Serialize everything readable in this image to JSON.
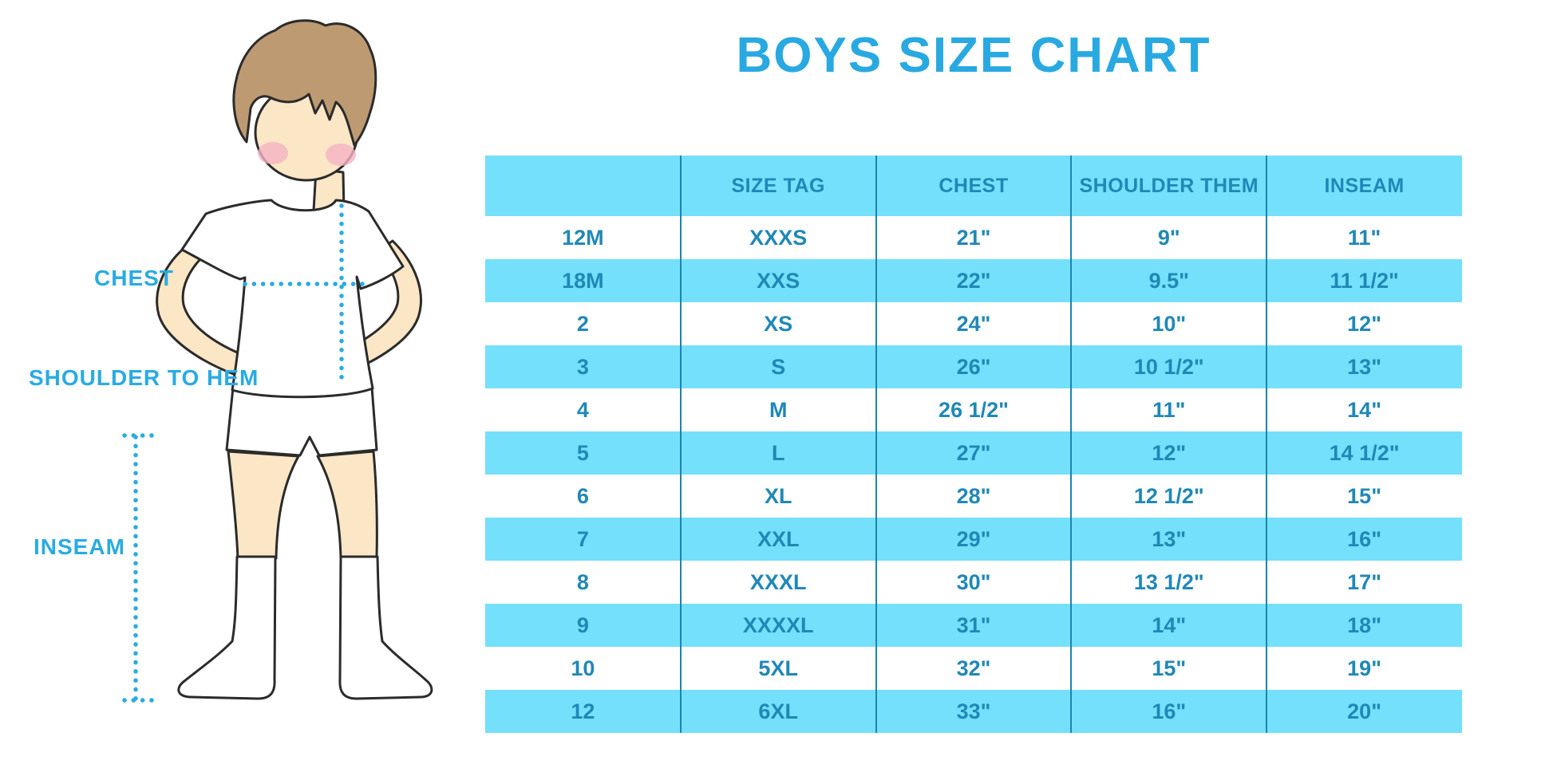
{
  "title": "BOYS SIZE CHART",
  "figure": {
    "labels": {
      "chest": "CHEST",
      "shoulder_to_hem": "SHOULDER TO HEM",
      "inseam": "INSEAM"
    }
  },
  "chart_data": {
    "type": "table",
    "title": "BOYS SIZE CHART",
    "columns": [
      "",
      "SIZE TAG",
      "CHEST",
      "SHOULDER THEM",
      "INSEAM"
    ],
    "rows": [
      [
        "12M",
        "XXXS",
        "21\"",
        "9\"",
        "11\""
      ],
      [
        "18M",
        "XXS",
        "22\"",
        "9.5\"",
        "11 1/2\""
      ],
      [
        "2",
        "XS",
        "24\"",
        "10\"",
        "12\""
      ],
      [
        "3",
        "S",
        "26\"",
        "10 1/2\"",
        "13\""
      ],
      [
        "4",
        "M",
        "26 1/2\"",
        "11\"",
        "14\""
      ],
      [
        "5",
        "L",
        "27\"",
        "12\"",
        "14 1/2\""
      ],
      [
        "6",
        "XL",
        "28\"",
        "12 1/2\"",
        "15\""
      ],
      [
        "7",
        "XXL",
        "29\"",
        "13\"",
        "16\""
      ],
      [
        "8",
        "XXXL",
        "30\"",
        "13 1/2\"",
        "17\""
      ],
      [
        "9",
        "XXXXL",
        "31\"",
        "14\"",
        "18\""
      ],
      [
        "10",
        "5XL",
        "32\"",
        "15\"",
        "19\""
      ],
      [
        "12",
        "6XL",
        "33\"",
        "16\"",
        "20\""
      ]
    ],
    "layout": {
      "header_fill": "#74E0FB",
      "alternating_rows": true,
      "first_data_row": "white"
    }
  },
  "colors": {
    "accent_blue": "#29ABE2",
    "title_blue": "#29A9E1",
    "table_fill": "#74E0FB",
    "table_text": "#1F88B7",
    "column_line": "#1B84B0",
    "skin": "#FBE6C6",
    "hair": "#BD9A72",
    "blush": "#F5B3C3",
    "outline": "#2b2b2b"
  }
}
